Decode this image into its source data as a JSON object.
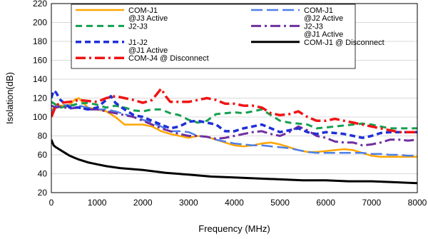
{
  "chart_data": {
    "type": "line",
    "title": "",
    "xlabel": "Frequency (MHz)",
    "ylabel": "Isolation(dB)",
    "xlim": [
      0,
      8000
    ],
    "ylim": [
      20,
      220
    ],
    "xticks": [
      0,
      1000,
      2000,
      3000,
      4000,
      5000,
      6000,
      7000,
      8000
    ],
    "yticks": [
      20,
      40,
      60,
      80,
      100,
      120,
      140,
      160,
      180,
      200,
      220
    ],
    "grid": "horizontal",
    "legend_position": "top",
    "series": [
      {
        "name": "COM-J1 @J3 Active",
        "legend_lines": [
          "COM-J1",
          "@J3 Active"
        ],
        "color": "#FFA500",
        "dash": "",
        "width": 2.5,
        "points": [
          [
            0,
            108
          ],
          [
            100,
            110
          ],
          [
            200,
            112
          ],
          [
            400,
            113
          ],
          [
            500,
            118
          ],
          [
            600,
            120
          ],
          [
            700,
            115
          ],
          [
            800,
            110
          ],
          [
            1000,
            108
          ],
          [
            1200,
            106
          ],
          [
            1400,
            100
          ],
          [
            1600,
            92
          ],
          [
            1800,
            92
          ],
          [
            2000,
            92
          ],
          [
            2200,
            90
          ],
          [
            2400,
            85
          ],
          [
            2600,
            82
          ],
          [
            2800,
            80
          ],
          [
            3000,
            78
          ],
          [
            3200,
            80
          ],
          [
            3400,
            79
          ],
          [
            3600,
            76
          ],
          [
            3800,
            73
          ],
          [
            4000,
            70
          ],
          [
            4200,
            69
          ],
          [
            4400,
            70
          ],
          [
            4600,
            72
          ],
          [
            4800,
            73
          ],
          [
            5000,
            71
          ],
          [
            5200,
            68
          ],
          [
            5400,
            65
          ],
          [
            5600,
            63
          ],
          [
            5800,
            63
          ],
          [
            6000,
            64
          ],
          [
            6200,
            65
          ],
          [
            6400,
            66
          ],
          [
            6600,
            65
          ],
          [
            6800,
            62
          ],
          [
            7000,
            59
          ],
          [
            7200,
            58
          ],
          [
            7400,
            58
          ],
          [
            7600,
            58
          ],
          [
            7800,
            58
          ],
          [
            8000,
            58
          ]
        ]
      },
      {
        "name": "COM-J1 @J2 Active",
        "legend_lines": [
          "COM-J1",
          "@J2 Active"
        ],
        "color": "#4D7FE8",
        "dash": "16,6",
        "width": 2.5,
        "points": [
          [
            0,
            105
          ],
          [
            100,
            112
          ],
          [
            200,
            113
          ],
          [
            400,
            112
          ],
          [
            600,
            112
          ],
          [
            800,
            110
          ],
          [
            1000,
            108
          ],
          [
            1200,
            108
          ],
          [
            1400,
            106
          ],
          [
            1600,
            103
          ],
          [
            1800,
            100
          ],
          [
            2000,
            97
          ],
          [
            2200,
            94
          ],
          [
            2400,
            90
          ],
          [
            2600,
            85
          ],
          [
            2800,
            85
          ],
          [
            3000,
            84
          ],
          [
            3200,
            80
          ],
          [
            3400,
            79
          ],
          [
            3600,
            76
          ],
          [
            3800,
            74
          ],
          [
            4000,
            72
          ],
          [
            4200,
            71
          ],
          [
            4400,
            70
          ],
          [
            4600,
            70
          ],
          [
            4800,
            69
          ],
          [
            5000,
            68
          ],
          [
            5200,
            67
          ],
          [
            5400,
            65
          ],
          [
            5600,
            63
          ],
          [
            5800,
            62
          ],
          [
            6000,
            62
          ],
          [
            6200,
            62
          ],
          [
            6400,
            62
          ],
          [
            6600,
            62
          ],
          [
            6800,
            62
          ],
          [
            7000,
            61
          ],
          [
            7200,
            61
          ],
          [
            7400,
            60
          ],
          [
            7600,
            60
          ],
          [
            7800,
            59
          ],
          [
            8000,
            59
          ]
        ]
      },
      {
        "name": "J2-J3",
        "legend_lines": [
          "J2-J3"
        ],
        "color": "#14A050",
        "dash": "9,6",
        "width": 3,
        "points": [
          [
            0,
            116
          ],
          [
            100,
            113
          ],
          [
            200,
            110
          ],
          [
            400,
            112
          ],
          [
            600,
            114
          ],
          [
            800,
            115
          ],
          [
            1000,
            113
          ],
          [
            1200,
            110
          ],
          [
            1400,
            112
          ],
          [
            1600,
            110
          ],
          [
            1800,
            107
          ],
          [
            2000,
            106
          ],
          [
            2200,
            108
          ],
          [
            2400,
            108
          ],
          [
            2600,
            104
          ],
          [
            2800,
            102
          ],
          [
            3000,
            97
          ],
          [
            3200,
            94
          ],
          [
            3400,
            96
          ],
          [
            3600,
            103
          ],
          [
            3800,
            104
          ],
          [
            4000,
            105
          ],
          [
            4200,
            104
          ],
          [
            4400,
            106
          ],
          [
            4600,
            108
          ],
          [
            4800,
            102
          ],
          [
            5000,
            96
          ],
          [
            5200,
            94
          ],
          [
            5400,
            93
          ],
          [
            5600,
            92
          ],
          [
            5800,
            88
          ],
          [
            6000,
            89
          ],
          [
            6200,
            90
          ],
          [
            6400,
            91
          ],
          [
            6600,
            92
          ],
          [
            6800,
            93
          ],
          [
            7000,
            92
          ],
          [
            7200,
            90
          ],
          [
            7400,
            88
          ],
          [
            7600,
            88
          ],
          [
            7800,
            88
          ],
          [
            8000,
            88
          ]
        ]
      },
      {
        "name": "J2-J3 @J1 Active",
        "legend_lines": [
          "J2-J3",
          "@J1 Active"
        ],
        "color": "#7030A0",
        "dash": "14,5,3,5",
        "width": 3,
        "points": [
          [
            0,
            112
          ],
          [
            100,
            110
          ],
          [
            200,
            111
          ],
          [
            400,
            109
          ],
          [
            600,
            110
          ],
          [
            800,
            108
          ],
          [
            1000,
            108
          ],
          [
            1200,
            106
          ],
          [
            1400,
            104
          ],
          [
            1600,
            102
          ],
          [
            1800,
            100
          ],
          [
            2000,
            96
          ],
          [
            2200,
            92
          ],
          [
            2400,
            88
          ],
          [
            2600,
            85
          ],
          [
            2800,
            82
          ],
          [
            3000,
            80
          ],
          [
            3200,
            80
          ],
          [
            3400,
            79
          ],
          [
            3600,
            77
          ],
          [
            3800,
            78
          ],
          [
            4000,
            80
          ],
          [
            4200,
            82
          ],
          [
            4400,
            84
          ],
          [
            4600,
            85
          ],
          [
            4800,
            82
          ],
          [
            5000,
            80
          ],
          [
            5200,
            84
          ],
          [
            5400,
            90
          ],
          [
            5600,
            86
          ],
          [
            5800,
            80
          ],
          [
            6000,
            78
          ],
          [
            6200,
            74
          ],
          [
            6400,
            73
          ],
          [
            6600,
            73
          ],
          [
            6800,
            70
          ],
          [
            7000,
            71
          ],
          [
            7200,
            73
          ],
          [
            7400,
            76
          ],
          [
            7600,
            76
          ],
          [
            7800,
            75
          ],
          [
            8000,
            76
          ]
        ]
      },
      {
        "name": "J1-J2 @J1 Active",
        "legend_lines": [
          "J1-J2",
          "@J1 Active"
        ],
        "color": "#1F2FD8",
        "dash": "8,5",
        "width": 3.5,
        "points": [
          [
            0,
            120
          ],
          [
            50,
            128
          ],
          [
            100,
            126
          ],
          [
            200,
            118
          ],
          [
            400,
            110
          ],
          [
            600,
            110
          ],
          [
            800,
            108
          ],
          [
            1000,
            110
          ],
          [
            1200,
            118
          ],
          [
            1300,
            122
          ],
          [
            1400,
            115
          ],
          [
            1600,
            108
          ],
          [
            1800,
            102
          ],
          [
            2000,
            100
          ],
          [
            2200,
            96
          ],
          [
            2400,
            92
          ],
          [
            2600,
            88
          ],
          [
            2800,
            90
          ],
          [
            3000,
            95
          ],
          [
            3200,
            96
          ],
          [
            3400,
            94
          ],
          [
            3600,
            92
          ],
          [
            3800,
            85
          ],
          [
            4000,
            85
          ],
          [
            4200,
            88
          ],
          [
            4400,
            90
          ],
          [
            4600,
            92
          ],
          [
            4800,
            88
          ],
          [
            5000,
            84
          ],
          [
            5200,
            86
          ],
          [
            5400,
            88
          ],
          [
            5600,
            84
          ],
          [
            5800,
            82
          ],
          [
            6000,
            84
          ],
          [
            6200,
            83
          ],
          [
            6400,
            82
          ],
          [
            6600,
            80
          ],
          [
            6800,
            78
          ],
          [
            7000,
            80
          ],
          [
            7200,
            83
          ],
          [
            7400,
            84
          ],
          [
            7600,
            84
          ],
          [
            7800,
            84
          ],
          [
            8000,
            84
          ]
        ]
      },
      {
        "name": "COM-J1 @ Disconnect",
        "legend_lines": [
          "COM-J1 @ Disconnect"
        ],
        "color": "#000000",
        "dash": "",
        "width": 3,
        "points": [
          [
            0,
            76
          ],
          [
            50,
            70
          ],
          [
            100,
            68
          ],
          [
            200,
            65
          ],
          [
            300,
            62
          ],
          [
            400,
            59
          ],
          [
            500,
            57
          ],
          [
            600,
            55
          ],
          [
            800,
            52
          ],
          [
            1000,
            50
          ],
          [
            1200,
            48
          ],
          [
            1500,
            46
          ],
          [
            2000,
            44
          ],
          [
            2500,
            41
          ],
          [
            3000,
            39
          ],
          [
            3500,
            37
          ],
          [
            4000,
            36
          ],
          [
            4500,
            35
          ],
          [
            5000,
            34
          ],
          [
            5500,
            33
          ],
          [
            6000,
            33
          ],
          [
            6500,
            32
          ],
          [
            7000,
            32
          ],
          [
            7500,
            31
          ],
          [
            8000,
            30
          ]
        ]
      },
      {
        "name": "COM-J4 @ Disconnect",
        "legend_lines": [
          "COM-J4 @ Disconnect"
        ],
        "color": "#F01414",
        "dash": "14,5,3,5",
        "width": 3.5,
        "points": [
          [
            0,
            100
          ],
          [
            100,
            112
          ],
          [
            200,
            115
          ],
          [
            400,
            116
          ],
          [
            600,
            118
          ],
          [
            800,
            117
          ],
          [
            1000,
            116
          ],
          [
            1200,
            120
          ],
          [
            1400,
            122
          ],
          [
            1600,
            120
          ],
          [
            1800,
            118
          ],
          [
            2000,
            115
          ],
          [
            2200,
            118
          ],
          [
            2400,
            130
          ],
          [
            2500,
            122
          ],
          [
            2600,
            116
          ],
          [
            2800,
            116
          ],
          [
            3000,
            116
          ],
          [
            3200,
            118
          ],
          [
            3400,
            120
          ],
          [
            3600,
            118
          ],
          [
            3800,
            114
          ],
          [
            4000,
            114
          ],
          [
            4200,
            112
          ],
          [
            4400,
            112
          ],
          [
            4600,
            110
          ],
          [
            4800,
            104
          ],
          [
            5000,
            102
          ],
          [
            5200,
            103
          ],
          [
            5400,
            106
          ],
          [
            5600,
            100
          ],
          [
            5800,
            96
          ],
          [
            6000,
            96
          ],
          [
            6200,
            98
          ],
          [
            6400,
            96
          ],
          [
            6600,
            94
          ],
          [
            6800,
            92
          ],
          [
            7000,
            90
          ],
          [
            7200,
            88
          ],
          [
            7400,
            86
          ],
          [
            7600,
            84
          ],
          [
            7800,
            84
          ],
          [
            8000,
            84
          ]
        ]
      }
    ]
  }
}
